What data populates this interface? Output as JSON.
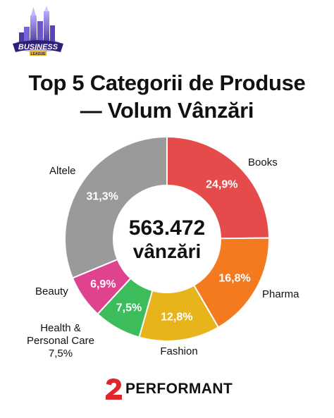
{
  "badge": {
    "text": "BUSINESS",
    "subtext": "LEAGUE"
  },
  "title": {
    "line1": "Top 5 Categorii de Produse",
    "line2": "— Volum Vânzări"
  },
  "chart_data": {
    "type": "pie",
    "title": "Top 5 Categorii de Produse — Volum Vânzări",
    "center_value": "563.472",
    "center_unit": "vânzări",
    "slices": [
      {
        "category": "Books",
        "value": 24.9,
        "label": "24,9%",
        "color": "#e54b4b"
      },
      {
        "category": "Pharma",
        "value": 16.8,
        "label": "16,8%",
        "color": "#f47a20"
      },
      {
        "category": "Fashion",
        "value": 12.8,
        "label": "12,8%",
        "color": "#e8b41c"
      },
      {
        "category": "Health & Personal Care",
        "value": 7.5,
        "label": "7,5%",
        "color": "#3cbc5a"
      },
      {
        "category": "Beauty",
        "value": 6.9,
        "label": "6,9%",
        "color": "#e0438e"
      },
      {
        "category": "Altele",
        "value": 31.3,
        "label": "31,3%",
        "color": "#9a9a9a"
      }
    ],
    "outside_labels": {
      "Books": "Books",
      "Pharma": "Pharma",
      "Fashion": "Fashion",
      "Health & Personal Care": [
        "Health &",
        "Personal Care",
        "7,5%"
      ],
      "Beauty": "Beauty",
      "Altele": "Altele"
    }
  },
  "footer": {
    "brand": "PERFORMANT",
    "brand_mark": "2"
  },
  "colors": {
    "brand_red": "#e0262b",
    "text": "#111111"
  }
}
